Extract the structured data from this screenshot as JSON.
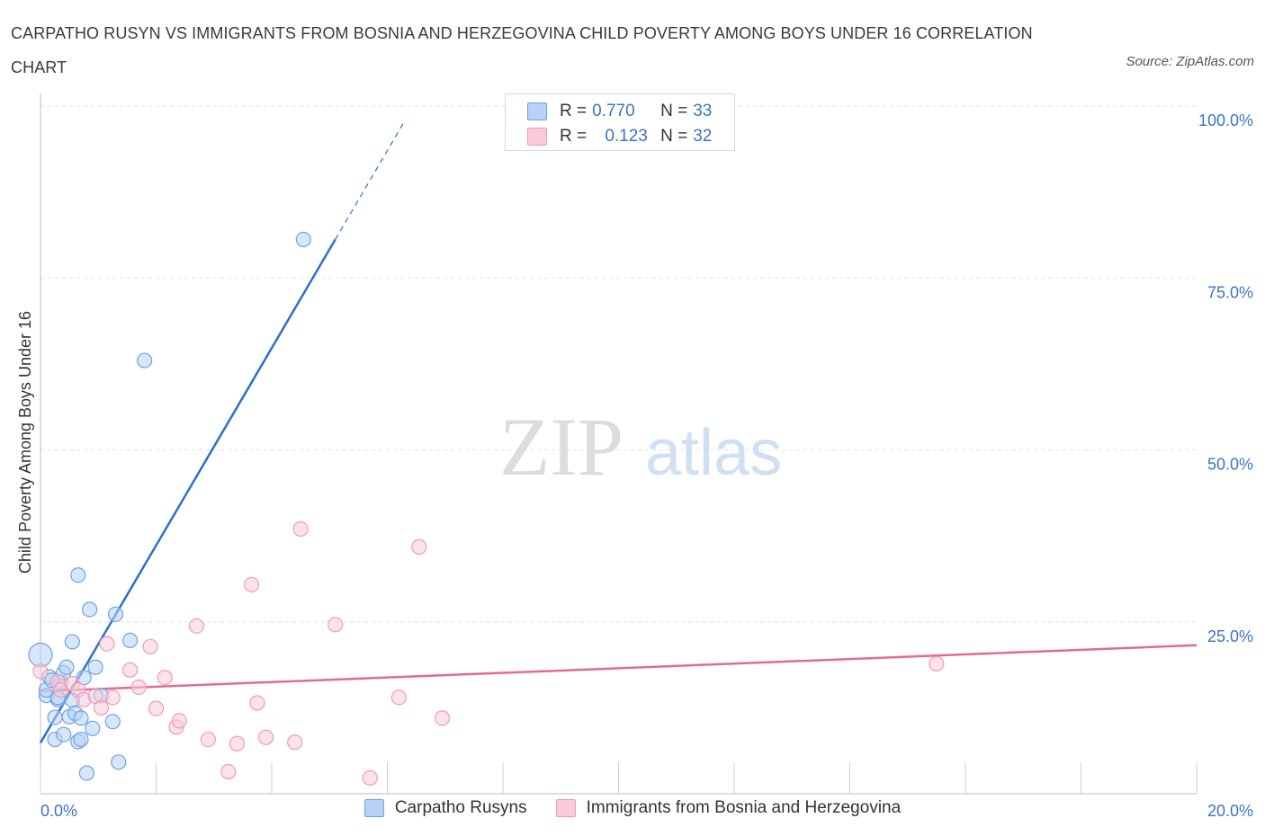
{
  "title": "CARPATHO RUSYN VS IMMIGRANTS FROM BOSNIA AND HERZEGOVINA CHILD POVERTY AMONG BOYS UNDER 16 CORRELATION CHART",
  "source": "Source: ZipAtlas.com",
  "watermark": {
    "zip": "ZIP",
    "atlas": "atlas"
  },
  "legend": {
    "series1": {
      "r_label": "R =",
      "r_value": "0.770",
      "n_label": "N =",
      "n_value": "33"
    },
    "series2": {
      "r_label": "R =",
      "r_value": "0.123",
      "n_label": "N =",
      "n_value": "32"
    }
  },
  "chart_data": {
    "type": "scatter",
    "title": "CARPATHO RUSYN VS IMMIGRANTS FROM BOSNIA AND HERZEGOVINA CHILD POVERTY AMONG BOYS UNDER 16 CORRELATION CHART",
    "xlabel": "",
    "ylabel": "Child Poverty Among Boys Under 16",
    "xlim": [
      0,
      20
    ],
    "ylim": [
      0,
      100
    ],
    "x_tick_labels": [
      "0.0%",
      "20.0%"
    ],
    "y_tick_labels": [
      "100.0%",
      "75.0%",
      "50.0%",
      "25.0%"
    ],
    "y_ticks": [
      100,
      75,
      50,
      25
    ],
    "grid": true,
    "series": [
      {
        "name": "Carpatho Rusyns",
        "color": "#6ea1e6",
        "fill": "#b8d1f5",
        "trend_color": "#2c6fcf",
        "trend": {
          "x0": 0,
          "y0": 7.4,
          "x1": 5.1,
          "y1": 80.6,
          "x_dash_end": 6.3
        },
        "points": [
          [
            0.0,
            20.2
          ],
          [
            0.1,
            14.3
          ],
          [
            0.1,
            15.1
          ],
          [
            0.15,
            17.0
          ],
          [
            0.25,
            7.9
          ],
          [
            0.25,
            11.1
          ],
          [
            0.3,
            13.7
          ],
          [
            0.35,
            16.2
          ],
          [
            0.4,
            17.6
          ],
          [
            0.4,
            8.6
          ],
          [
            0.45,
            18.4
          ],
          [
            0.5,
            11.2
          ],
          [
            0.55,
            13.6
          ],
          [
            0.55,
            22.1
          ],
          [
            0.6,
            11.7
          ],
          [
            0.65,
            7.6
          ],
          [
            0.65,
            31.8
          ],
          [
            0.7,
            7.9
          ],
          [
            0.7,
            11.0
          ],
          [
            0.75,
            16.9
          ],
          [
            0.8,
            3.0
          ],
          [
            0.85,
            26.8
          ],
          [
            0.9,
            9.5
          ],
          [
            0.95,
            18.4
          ],
          [
            1.05,
            14.3
          ],
          [
            1.25,
            10.5
          ],
          [
            1.3,
            26.1
          ],
          [
            1.35,
            4.6
          ],
          [
            1.55,
            22.3
          ],
          [
            1.8,
            63.0
          ],
          [
            4.55,
            80.6
          ],
          [
            0.3,
            14.0
          ],
          [
            0.2,
            16.5
          ]
        ]
      },
      {
        "name": "Immigrants from Bosnia and Herzegovina",
        "color": "#ef9bb5",
        "fill": "#f9cbd8",
        "trend_color": "#e16b94",
        "trend": {
          "x0": 0,
          "y0": 14.9,
          "x1": 20,
          "y1": 21.6
        },
        "points": [
          [
            0.0,
            17.8
          ],
          [
            0.3,
            16.3
          ],
          [
            0.35,
            15.1
          ],
          [
            0.55,
            16.0
          ],
          [
            0.65,
            15.1
          ],
          [
            0.75,
            13.7
          ],
          [
            0.95,
            14.2
          ],
          [
            1.05,
            12.5
          ],
          [
            1.15,
            21.8
          ],
          [
            1.25,
            14.0
          ],
          [
            1.55,
            18.0
          ],
          [
            1.7,
            15.5
          ],
          [
            1.9,
            21.4
          ],
          [
            2.0,
            12.4
          ],
          [
            2.15,
            16.9
          ],
          [
            2.35,
            9.7
          ],
          [
            2.4,
            10.6
          ],
          [
            2.7,
            24.4
          ],
          [
            2.9,
            7.9
          ],
          [
            3.25,
            3.2
          ],
          [
            3.4,
            7.3
          ],
          [
            3.65,
            30.4
          ],
          [
            3.75,
            13.2
          ],
          [
            3.9,
            8.2
          ],
          [
            4.4,
            7.5
          ],
          [
            4.5,
            38.5
          ],
          [
            5.1,
            24.6
          ],
          [
            5.7,
            2.3
          ],
          [
            6.2,
            14.0
          ],
          [
            6.55,
            35.9
          ],
          [
            6.95,
            11.0
          ],
          [
            15.5,
            18.9
          ]
        ]
      }
    ]
  },
  "bottom_legend": [
    "Carpatho Rusyns",
    "Immigrants from Bosnia and Herzegovina"
  ]
}
